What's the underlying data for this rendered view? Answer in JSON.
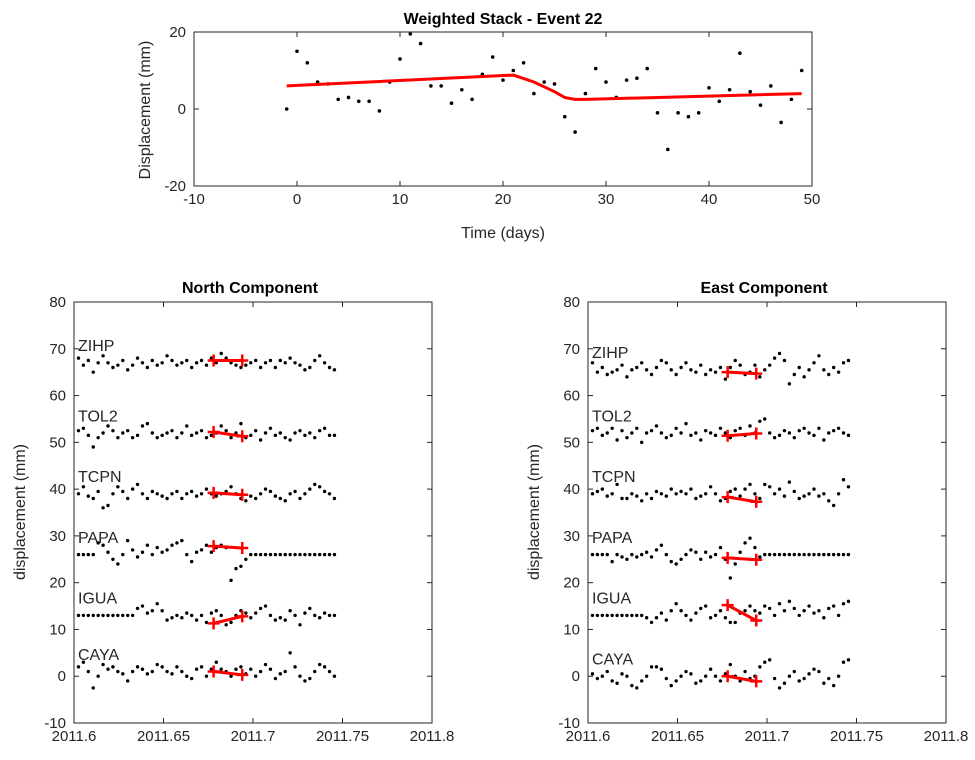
{
  "chart_data": [
    {
      "type": "scatter",
      "title": "Weighted Stack - Event 22",
      "xlabel": "Time (days)",
      "ylabel": "Displacement (mm)",
      "xlim": [
        -10,
        50
      ],
      "ylim": [
        -20,
        20
      ],
      "xticks": [
        -10,
        0,
        10,
        20,
        30,
        40,
        50
      ],
      "yticks": [
        -20,
        0,
        20
      ],
      "grid": false,
      "colors": {
        "points": "#000000",
        "fit": "#ff0000"
      },
      "points": {
        "x": [
          -1,
          0,
          1,
          2,
          3,
          4,
          5,
          6,
          7,
          8,
          9,
          10,
          11,
          12,
          13,
          14,
          15,
          16,
          17,
          18,
          19,
          20,
          21,
          22,
          23,
          24,
          25,
          26,
          27,
          28,
          29,
          30,
          31,
          32,
          33,
          34,
          35,
          36,
          37,
          38,
          39,
          40,
          41,
          42,
          43,
          44,
          45,
          46,
          47,
          48,
          49
        ],
        "y": [
          0,
          15,
          12,
          7,
          6.5,
          2.5,
          3,
          2,
          2,
          -0.5,
          7,
          13,
          19.5,
          17,
          6,
          6,
          1.5,
          5,
          2.5,
          9,
          13.5,
          7.5,
          10,
          12,
          4,
          7,
          6.5,
          -2,
          -6,
          4,
          10.5,
          7,
          3,
          7.5,
          8,
          10.5,
          -1,
          -10.5,
          -1,
          -2,
          -1,
          5.5,
          2,
          5,
          14.5,
          4.5,
          1,
          6,
          -3.5,
          2.5,
          10
        ]
      },
      "fit_line": {
        "x": [
          -1,
          21,
          23,
          25,
          26,
          27,
          28,
          49
        ],
        "y": [
          6,
          8.8,
          7,
          4.5,
          3,
          2.5,
          2.5,
          4
        ]
      }
    },
    {
      "type": "scatter",
      "title": "North Component",
      "xlabel": "",
      "ylabel": "displacement (mm)",
      "xlim": [
        2011.6,
        2011.8
      ],
      "ylim": [
        -10,
        80
      ],
      "xticks": [
        "2011.6",
        "2011.65",
        "2011.7",
        "2011.75",
        "2011.8"
      ],
      "yticks": [
        -10,
        0,
        10,
        20,
        30,
        40,
        50,
        60,
        70,
        80
      ],
      "t0": 2011.6025,
      "dt": 0.00275,
      "stations": [
        {
          "name": "ZIHP",
          "baseline": 67,
          "offsets": [
            1.0,
            -0.5,
            0.5,
            -2.0,
            0.0,
            1.5,
            0.0,
            -1.0,
            -0.5,
            0.5,
            -1.5,
            -0.5,
            1.0,
            0.0,
            -1.0,
            0.5,
            -0.5,
            0.0,
            1.5,
            0.5,
            -0.5,
            0.0,
            0.5,
            -1.0,
            0.0,
            0.5,
            -0.5,
            1.0,
            0.0,
            2.0,
            1.0,
            0.0,
            -0.5,
            -1.0,
            -0.5,
            0.0,
            0.5,
            -1.0,
            0.0,
            0.5,
            -1.0,
            0.5,
            0.0,
            1.0,
            0.0,
            -0.5,
            -1.5,
            -1.0,
            0.5,
            1.5,
            0.0,
            -1.0,
            -1.5
          ],
          "fit": {
            "x": [
              2011.678,
              2011.694
            ],
            "y": [
              67.5,
              67.5
            ]
          }
        },
        {
          "name": "TOL2",
          "baseline": 52,
          "offsets": [
            0.5,
            1.0,
            -0.5,
            -3.0,
            -1.0,
            0.0,
            1.5,
            0.5,
            -1.0,
            0.0,
            0.5,
            -1.0,
            -0.5,
            1.5,
            2.0,
            0.0,
            -1.0,
            -0.5,
            0.0,
            0.5,
            -1.0,
            0.0,
            1.5,
            -0.5,
            0.0,
            0.5,
            -1.0,
            -0.5,
            0.0,
            1.5,
            0.5,
            -1.0,
            0.0,
            2.0,
            -1.0,
            -0.5,
            0.5,
            -1.5,
            0.0,
            1.0,
            -0.5,
            0.0,
            -1.0,
            -1.5,
            0.0,
            0.5,
            -0.5,
            0.0,
            -1.0,
            0.5,
            1.0,
            -0.5,
            -0.5
          ],
          "fit": {
            "x": [
              2011.678,
              2011.694
            ],
            "y": [
              52.2,
              51.3
            ]
          }
        },
        {
          "name": "TCPN",
          "baseline": 39,
          "offsets": [
            0.0,
            1.5,
            -0.5,
            -1.0,
            0.5,
            -3.0,
            -2.5,
            0.0,
            1.5,
            0.5,
            -1.0,
            1.0,
            2.0,
            0.0,
            -1.0,
            0.5,
            0.0,
            -0.5,
            -1.0,
            0.0,
            0.5,
            -1.0,
            0.0,
            0.5,
            -0.5,
            0.0,
            1.0,
            0.0,
            -0.5,
            0.0,
            0.5,
            1.5,
            0.0,
            -1.0,
            -1.5,
            -0.5,
            -1.0,
            0.0,
            1.0,
            0.5,
            -0.5,
            -1.0,
            -1.5,
            0.0,
            0.5,
            -1.0,
            0.0,
            1.0,
            2.0,
            1.5,
            0.5,
            0.0,
            -1.0
          ],
          "fit": {
            "x": [
              2011.678,
              2011.694
            ],
            "y": [
              39.2,
              38.8
            ]
          }
        },
        {
          "name": "PAPA",
          "baseline": 26,
          "offsets": [
            0.0,
            0.0,
            0.0,
            0.0,
            2.5,
            2.0,
            0.5,
            -1.0,
            -2.0,
            0.0,
            3.0,
            1.0,
            -0.5,
            0.5,
            2.0,
            0.0,
            1.5,
            0.5,
            1.0,
            2.0,
            2.5,
            3.0,
            0.0,
            -1.5,
            0.5,
            1.0,
            2.0,
            0.5,
            1.5,
            2.0,
            1.5,
            -5.5,
            -3.0,
            -2.5,
            -1.0,
            0.0,
            0.0,
            0.0,
            0.0,
            0.0,
            0.0,
            0.0,
            0.0,
            0.0,
            0.0,
            0.0,
            0.0,
            0.0,
            0.0,
            0.0,
            0.0,
            0.0,
            0.0
          ],
          "fit": {
            "x": [
              2011.678,
              2011.694
            ],
            "y": [
              27.8,
              27.4
            ]
          }
        },
        {
          "name": "IGUA",
          "baseline": 13,
          "offsets": [
            0.0,
            0.0,
            0.0,
            0.0,
            0.0,
            0.0,
            0.0,
            0.0,
            0.0,
            0.0,
            0.0,
            0.0,
            1.5,
            2.0,
            0.5,
            1.0,
            2.5,
            1.0,
            -1.0,
            -0.5,
            0.0,
            -0.5,
            0.5,
            0.0,
            -1.0,
            0.0,
            -1.5,
            0.5,
            1.0,
            0.0,
            -2.0,
            -1.5,
            0.0,
            1.0,
            0.5,
            -0.5,
            0.5,
            1.5,
            2.0,
            0.0,
            -1.0,
            -0.5,
            -1.0,
            1.0,
            0.0,
            -2.0,
            0.5,
            1.5,
            0.0,
            -0.5,
            0.5,
            0.0,
            0.0
          ],
          "fit": {
            "x": [
              2011.678,
              2011.694
            ],
            "y": [
              11.3,
              12.8
            ]
          }
        },
        {
          "name": "CAYA",
          "baseline": 1,
          "offsets": [
            1.0,
            2.0,
            0.0,
            -3.5,
            -1.0,
            1.5,
            0.5,
            1.0,
            0.0,
            -0.5,
            -2.0,
            0.0,
            1.0,
            0.5,
            -0.5,
            0.0,
            1.5,
            1.0,
            0.0,
            -0.5,
            1.0,
            0.0,
            -1.0,
            -1.5,
            0.5,
            1.0,
            -1.0,
            0.5,
            2.0,
            0.5,
            0.0,
            -1.0,
            0.5,
            1.0,
            -0.5,
            0.5,
            -1.0,
            0.0,
            1.5,
            0.5,
            -1.5,
            -0.5,
            0.0,
            4.0,
            1.0,
            -1.0,
            -2.0,
            -1.5,
            0.0,
            1.5,
            1.0,
            0.0,
            -1.0
          ],
          "fit": {
            "x": [
              2011.678,
              2011.694
            ],
            "y": [
              1.0,
              0.3
            ]
          }
        }
      ],
      "colors": {
        "points": "#000000",
        "fit": "#ff0000"
      }
    },
    {
      "type": "scatter",
      "title": "East Component",
      "xlabel": "",
      "ylabel": "displacement (mm)",
      "xlim": [
        2011.6,
        2011.8
      ],
      "ylim": [
        -10,
        80
      ],
      "xticks": [
        "2011.6",
        "2011.65",
        "2011.7",
        "2011.75",
        "2011.8"
      ],
      "yticks": [
        -10,
        0,
        10,
        20,
        30,
        40,
        50,
        60,
        70,
        80
      ],
      "t0": 2011.6025,
      "dt": 0.00275,
      "stations": [
        {
          "name": "ZIHP",
          "baseline": 65.5,
          "offsets": [
            1.5,
            -0.5,
            0.5,
            -1.0,
            -0.5,
            0.0,
            1.0,
            -1.5,
            0.0,
            0.5,
            1.5,
            0.0,
            -1.0,
            0.5,
            2.0,
            1.5,
            0.0,
            -1.0,
            0.5,
            1.5,
            0.0,
            -0.5,
            1.0,
            -1.0,
            0.0,
            -0.5,
            0.5,
            -2.0,
            0.5,
            2.0,
            1.0,
            -1.0,
            -0.5,
            1.0,
            -1.5,
            0.0,
            1.0,
            2.5,
            3.5,
            2.0,
            -3.0,
            -1.0,
            0.5,
            -1.5,
            0.0,
            1.5,
            3.0,
            0.0,
            -1.0,
            0.5,
            -0.5,
            1.5,
            2.0
          ],
          "fit": {
            "x": [
              2011.678,
              2011.694
            ],
            "y": [
              65.0,
              64.7
            ]
          }
        },
        {
          "name": "TOL2",
          "baseline": 52,
          "offsets": [
            0.5,
            1.0,
            -0.5,
            0.0,
            1.0,
            -1.5,
            0.5,
            -1.0,
            0.0,
            1.0,
            -2.0,
            0.0,
            0.5,
            1.5,
            0.0,
            -1.0,
            -0.5,
            1.0,
            0.0,
            2.0,
            -0.5,
            0.0,
            -1.5,
            0.5,
            0.0,
            -0.5,
            1.0,
            0.0,
            -1.0,
            0.5,
            1.0,
            -0.5,
            1.5,
            0.0,
            2.5,
            3.0,
            0.0,
            -1.0,
            -0.5,
            0.5,
            0.0,
            -1.0,
            0.5,
            1.0,
            0.0,
            -0.5,
            1.0,
            -1.5,
            0.0,
            0.5,
            1.0,
            0.0,
            -0.5
          ],
          "fit": {
            "x": [
              2011.678,
              2011.694
            ],
            "y": [
              51.4,
              51.9
            ]
          }
        },
        {
          "name": "TCPN",
          "baseline": 39,
          "offsets": [
            0.0,
            0.5,
            1.0,
            -0.5,
            0.0,
            2.0,
            -1.0,
            -1.0,
            0.0,
            -0.5,
            -1.5,
            0.0,
            -1.0,
            0.5,
            0.0,
            -0.5,
            1.0,
            0.0,
            0.5,
            0.0,
            1.0,
            -1.0,
            -0.5,
            0.0,
            1.5,
            0.0,
            -1.5,
            -1.0,
            0.5,
            1.0,
            -0.5,
            1.0,
            2.0,
            0.0,
            -1.0,
            2.0,
            1.5,
            0.0,
            1.0,
            -0.5,
            2.5,
            0.5,
            -1.0,
            -0.5,
            0.0,
            1.0,
            -0.5,
            0.0,
            -1.5,
            -2.5,
            0.0,
            3.0,
            1.5
          ],
          "fit": {
            "x": [
              2011.678,
              2011.694
            ],
            "y": [
              38.3,
              37.3
            ]
          }
        },
        {
          "name": "PAPA",
          "baseline": 26,
          "offsets": [
            0.0,
            0.0,
            0.0,
            0.0,
            -1.5,
            0.0,
            -0.5,
            -1.0,
            0.0,
            -0.5,
            0.0,
            0.5,
            -0.5,
            1.0,
            2.0,
            0.0,
            -1.5,
            -2.0,
            -1.0,
            0.0,
            1.0,
            0.5,
            -1.0,
            0.5,
            -0.5,
            0.0,
            1.5,
            -1.0,
            -5.0,
            -2.0,
            0.5,
            2.5,
            3.5,
            1.5,
            -0.5,
            0.0,
            0.0,
            0.0,
            0.0,
            0.0,
            0.0,
            0.0,
            0.0,
            0.0,
            0.0,
            0.0,
            0.0,
            0.0,
            0.0,
            0.0,
            0.0,
            0.0,
            0.0
          ],
          "fit": {
            "x": [
              2011.678,
              2011.694
            ],
            "y": [
              25.3,
              24.9
            ]
          }
        },
        {
          "name": "IGUA",
          "baseline": 13,
          "offsets": [
            0.0,
            0.0,
            0.0,
            0.0,
            0.0,
            0.0,
            0.0,
            0.0,
            0.0,
            0.0,
            0.0,
            -0.5,
            -1.5,
            -0.5,
            0.5,
            -1.0,
            1.0,
            2.5,
            1.0,
            0.0,
            -1.0,
            0.5,
            1.5,
            2.0,
            -0.5,
            0.0,
            1.0,
            -0.5,
            -1.5,
            -1.5,
            0.5,
            1.0,
            2.0,
            1.0,
            0.5,
            2.0,
            1.5,
            0.0,
            2.5,
            1.0,
            3.0,
            1.5,
            0.0,
            1.0,
            2.0,
            0.5,
            1.0,
            -0.5,
            1.5,
            2.0,
            0.0,
            2.5,
            3.0
          ],
          "fit": {
            "x": [
              2011.678,
              2011.694
            ],
            "y": [
              15.2,
              11.9
            ]
          }
        },
        {
          "name": "CAYA",
          "baseline": 0,
          "offsets": [
            0.5,
            -0.5,
            0.0,
            1.0,
            -1.0,
            -1.5,
            0.5,
            0.0,
            -2.0,
            -2.5,
            -1.0,
            0.0,
            2.0,
            2.0,
            1.5,
            -0.5,
            -2.0,
            -1.0,
            0.0,
            1.0,
            0.5,
            -1.5,
            -1.0,
            0.0,
            1.5,
            0.0,
            -1.0,
            0.5,
            2.5,
            0.0,
            -1.0,
            1.0,
            -0.5,
            0.0,
            2.0,
            3.0,
            3.5,
            -0.5,
            -2.5,
            -1.5,
            0.0,
            1.0,
            -1.0,
            -0.5,
            0.5,
            1.5,
            1.0,
            -1.5,
            -0.5,
            -2.0,
            0.0,
            3.0,
            3.5
          ],
          "fit": {
            "x": [
              2011.678,
              2011.694
            ],
            "y": [
              0.0,
              -1.1
            ]
          }
        }
      ],
      "colors": {
        "points": "#000000",
        "fit": "#ff0000"
      }
    }
  ]
}
